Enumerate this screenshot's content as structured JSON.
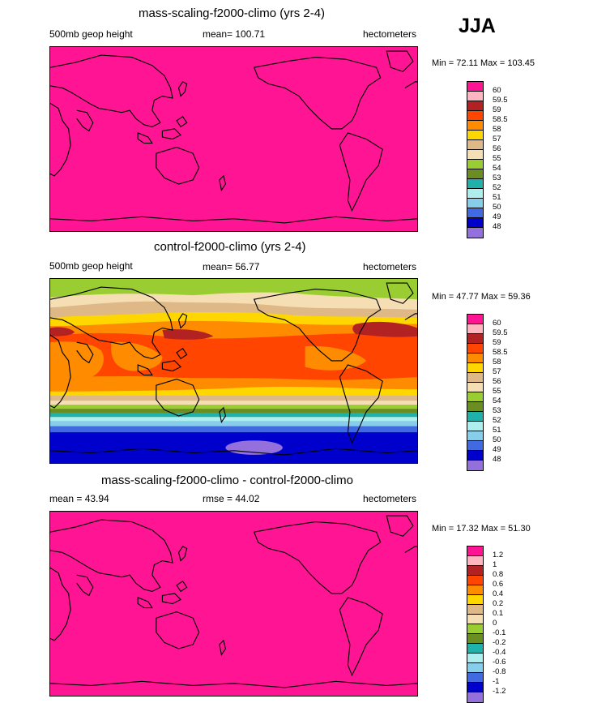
{
  "season": "JJA",
  "colors": {
    "palette": [
      "#ff1493",
      "#ffb6c1",
      "#b22222",
      "#ff4500",
      "#ff8c00",
      "#ffd700",
      "#deb887",
      "#f5deb3",
      "#9acd32",
      "#6b8e23",
      "#20b2aa",
      "#afeeee",
      "#87ceeb",
      "#4169e1",
      "#0000cd",
      "#9370db"
    ]
  },
  "panel1": {
    "title": "mass-scaling-f2000-climo (yrs 2-4)",
    "left": "500mb geop height",
    "center": "mean= 100.71",
    "right": "hectometers",
    "minmax": "Min =  72.11 Max = 103.45",
    "levels": [
      "60",
      "59.5",
      "59",
      "58.5",
      "58",
      "57",
      "56",
      "55",
      "54",
      "53",
      "52",
      "51",
      "50",
      "49",
      "48"
    ]
  },
  "panel2": {
    "title": "control-f2000-climo (yrs 2-4)",
    "left": "500mb geop height",
    "center": "mean=  56.77",
    "right": "hectometers",
    "minmax": "Min =  47.77 Max =  59.36",
    "levels": [
      "60",
      "59.5",
      "59",
      "58.5",
      "58",
      "57",
      "56",
      "55",
      "54",
      "53",
      "52",
      "51",
      "50",
      "49",
      "48"
    ]
  },
  "panel3": {
    "title": "mass-scaling-f2000-climo - control-f2000-climo",
    "left": "mean =  43.94",
    "center": "rmse =  44.02",
    "right": "hectometers",
    "minmax": "Min =  17.32 Max =  51.30",
    "levels": [
      "1.2",
      "1",
      "0.8",
      "0.6",
      "0.4",
      "0.2",
      "0.1",
      "0",
      "-0.1",
      "-0.2",
      "-0.4",
      "-0.6",
      "-0.8",
      "-1",
      "-1.2"
    ]
  }
}
